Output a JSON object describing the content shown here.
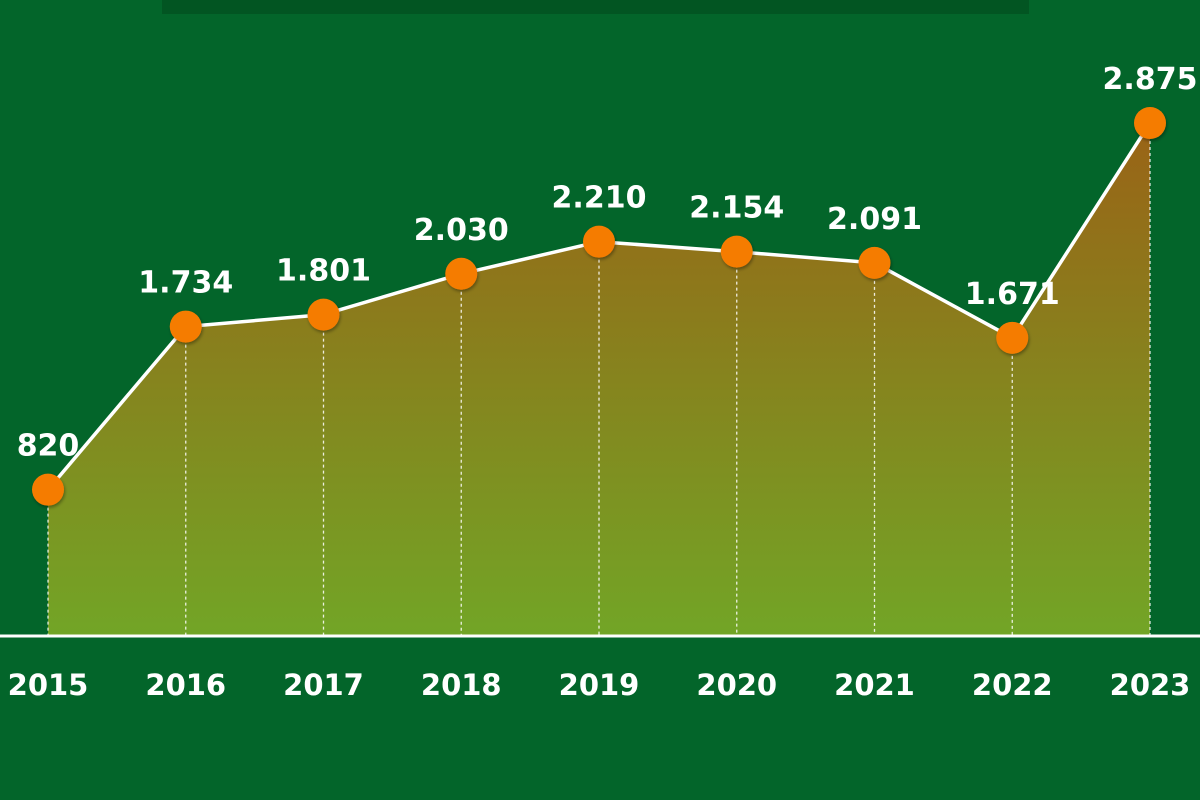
{
  "chart_data": {
    "type": "area",
    "title": "",
    "xlabel": "",
    "ylabel": "",
    "categories": [
      "2015",
      "2016",
      "2017",
      "2018",
      "2019",
      "2020",
      "2021",
      "2022",
      "2023"
    ],
    "values": [
      820,
      1734,
      1801,
      2030,
      2210,
      2154,
      2091,
      1671,
      2875
    ],
    "data_labels": [
      "820",
      "1.734",
      "1.801",
      "2.030",
      "2.210",
      "2.154",
      "2.091",
      "1.671",
      "2.875"
    ],
    "ylim": [
      0,
      2875
    ],
    "grid": false,
    "legend": "none",
    "colors": {
      "background": "#03652a",
      "line": "#ffffff",
      "marker": "#f57c00",
      "fill_top": "#9a6316",
      "fill_bottom": "#72a526",
      "baseline": "#ffffff"
    }
  }
}
